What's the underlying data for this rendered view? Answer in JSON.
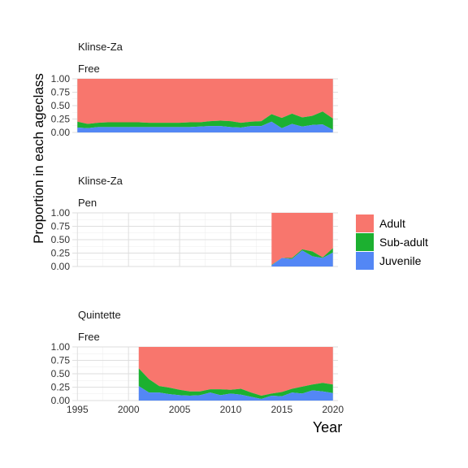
{
  "chart_data": {
    "type": "area",
    "stacked": true,
    "normalized": true,
    "ylabel": "Proportion in each ageclass",
    "xlabel": "Year",
    "xlim": [
      1994.5,
      2020.5
    ],
    "ylim": [
      0,
      1
    ],
    "x_ticks": [
      1995,
      2000,
      2005,
      2010,
      2015,
      2020
    ],
    "y_ticks": [
      0,
      0.25,
      0.5,
      0.75,
      1
    ],
    "y_tick_labels": [
      "0.00",
      "0.25",
      "0.50",
      "0.75",
      "1.00"
    ],
    "grid": true,
    "legend_position": "right",
    "series_order": [
      "Adult",
      "Sub-adult",
      "Juvenile"
    ],
    "colors": {
      "Adult": "#F8766D",
      "Sub-adult": "#1CB030",
      "Juvenile": "#5387F5"
    },
    "panels": [
      {
        "strip": [
          "Klinse-Za",
          "Free"
        ],
        "years": [
          1995,
          1996,
          1997,
          1998,
          1999,
          2000,
          2001,
          2002,
          2003,
          2004,
          2005,
          2006,
          2007,
          2008,
          2009,
          2010,
          2011,
          2012,
          2013,
          2014,
          2015,
          2016,
          2017,
          2018,
          2019,
          2020
        ],
        "juvenile": [
          0.09,
          0.08,
          0.1,
          0.1,
          0.1,
          0.1,
          0.1,
          0.1,
          0.1,
          0.1,
          0.1,
          0.1,
          0.11,
          0.12,
          0.12,
          0.1,
          0.09,
          0.12,
          0.12,
          0.2,
          0.08,
          0.16,
          0.11,
          0.14,
          0.15,
          0.05
        ],
        "subadult": [
          0.2,
          0.16,
          0.18,
          0.19,
          0.19,
          0.19,
          0.19,
          0.18,
          0.18,
          0.18,
          0.18,
          0.19,
          0.19,
          0.21,
          0.22,
          0.21,
          0.18,
          0.2,
          0.21,
          0.34,
          0.27,
          0.35,
          0.28,
          0.31,
          0.39,
          0.26
        ]
      },
      {
        "strip": [
          "Klinse-Za",
          "Pen"
        ],
        "years": [
          2014,
          2015,
          2016,
          2017,
          2018,
          2019,
          2020
        ],
        "juvenile": [
          0.02,
          0.16,
          0.14,
          0.3,
          0.19,
          0.16,
          0.26
        ],
        "subadult": [
          0.03,
          0.16,
          0.16,
          0.32,
          0.28,
          0.17,
          0.34
        ]
      },
      {
        "strip": [
          "Quintette",
          "Free"
        ],
        "years": [
          2001,
          2002,
          2003,
          2004,
          2005,
          2006,
          2007,
          2008,
          2009,
          2010,
          2011,
          2012,
          2013,
          2014,
          2015,
          2016,
          2017,
          2018,
          2019,
          2020
        ],
        "juvenile": [
          0.27,
          0.15,
          0.15,
          0.12,
          0.1,
          0.09,
          0.1,
          0.15,
          0.1,
          0.13,
          0.11,
          0.07,
          0.03,
          0.09,
          0.08,
          0.15,
          0.13,
          0.19,
          0.17,
          0.14
        ],
        "subadult": [
          0.6,
          0.4,
          0.27,
          0.24,
          0.2,
          0.17,
          0.17,
          0.21,
          0.21,
          0.2,
          0.22,
          0.15,
          0.09,
          0.13,
          0.16,
          0.22,
          0.26,
          0.3,
          0.33,
          0.3
        ]
      }
    ]
  }
}
